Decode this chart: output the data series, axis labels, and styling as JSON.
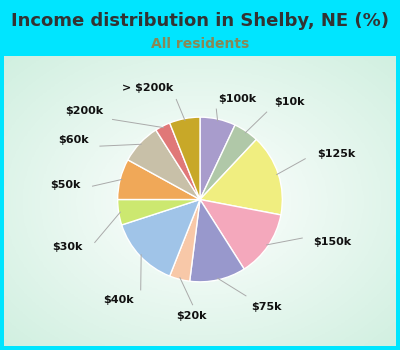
{
  "title": "Income distribution in Shelby, NE (%)",
  "subtitle": "All residents",
  "title_color": "#333333",
  "subtitle_color": "#7a7a7a",
  "background_top": "#00e5ff",
  "background_chart": "#e8f5ee",
  "labels": [
    "$100k",
    "$10k",
    "$125k",
    "$150k",
    "$75k",
    "$20k",
    "$40k",
    "$30k",
    "$50k",
    "$60k",
    "$200k",
    "> $200k"
  ],
  "values": [
    7,
    5,
    16,
    13,
    11,
    4,
    14,
    5,
    8,
    8,
    3,
    6
  ],
  "colors": [
    "#a89ccc",
    "#b0c8a8",
    "#f0ee80",
    "#f4a8bc",
    "#9898cc",
    "#f8c8a8",
    "#a0c4e8",
    "#cce870",
    "#f0a858",
    "#c8c0a8",
    "#e07878",
    "#c8a828"
  ],
  "label_fontsize": 8,
  "title_fontsize": 13,
  "subtitle_fontsize": 10,
  "wedge_lw": 1.0,
  "wedge_edge_color": "white"
}
